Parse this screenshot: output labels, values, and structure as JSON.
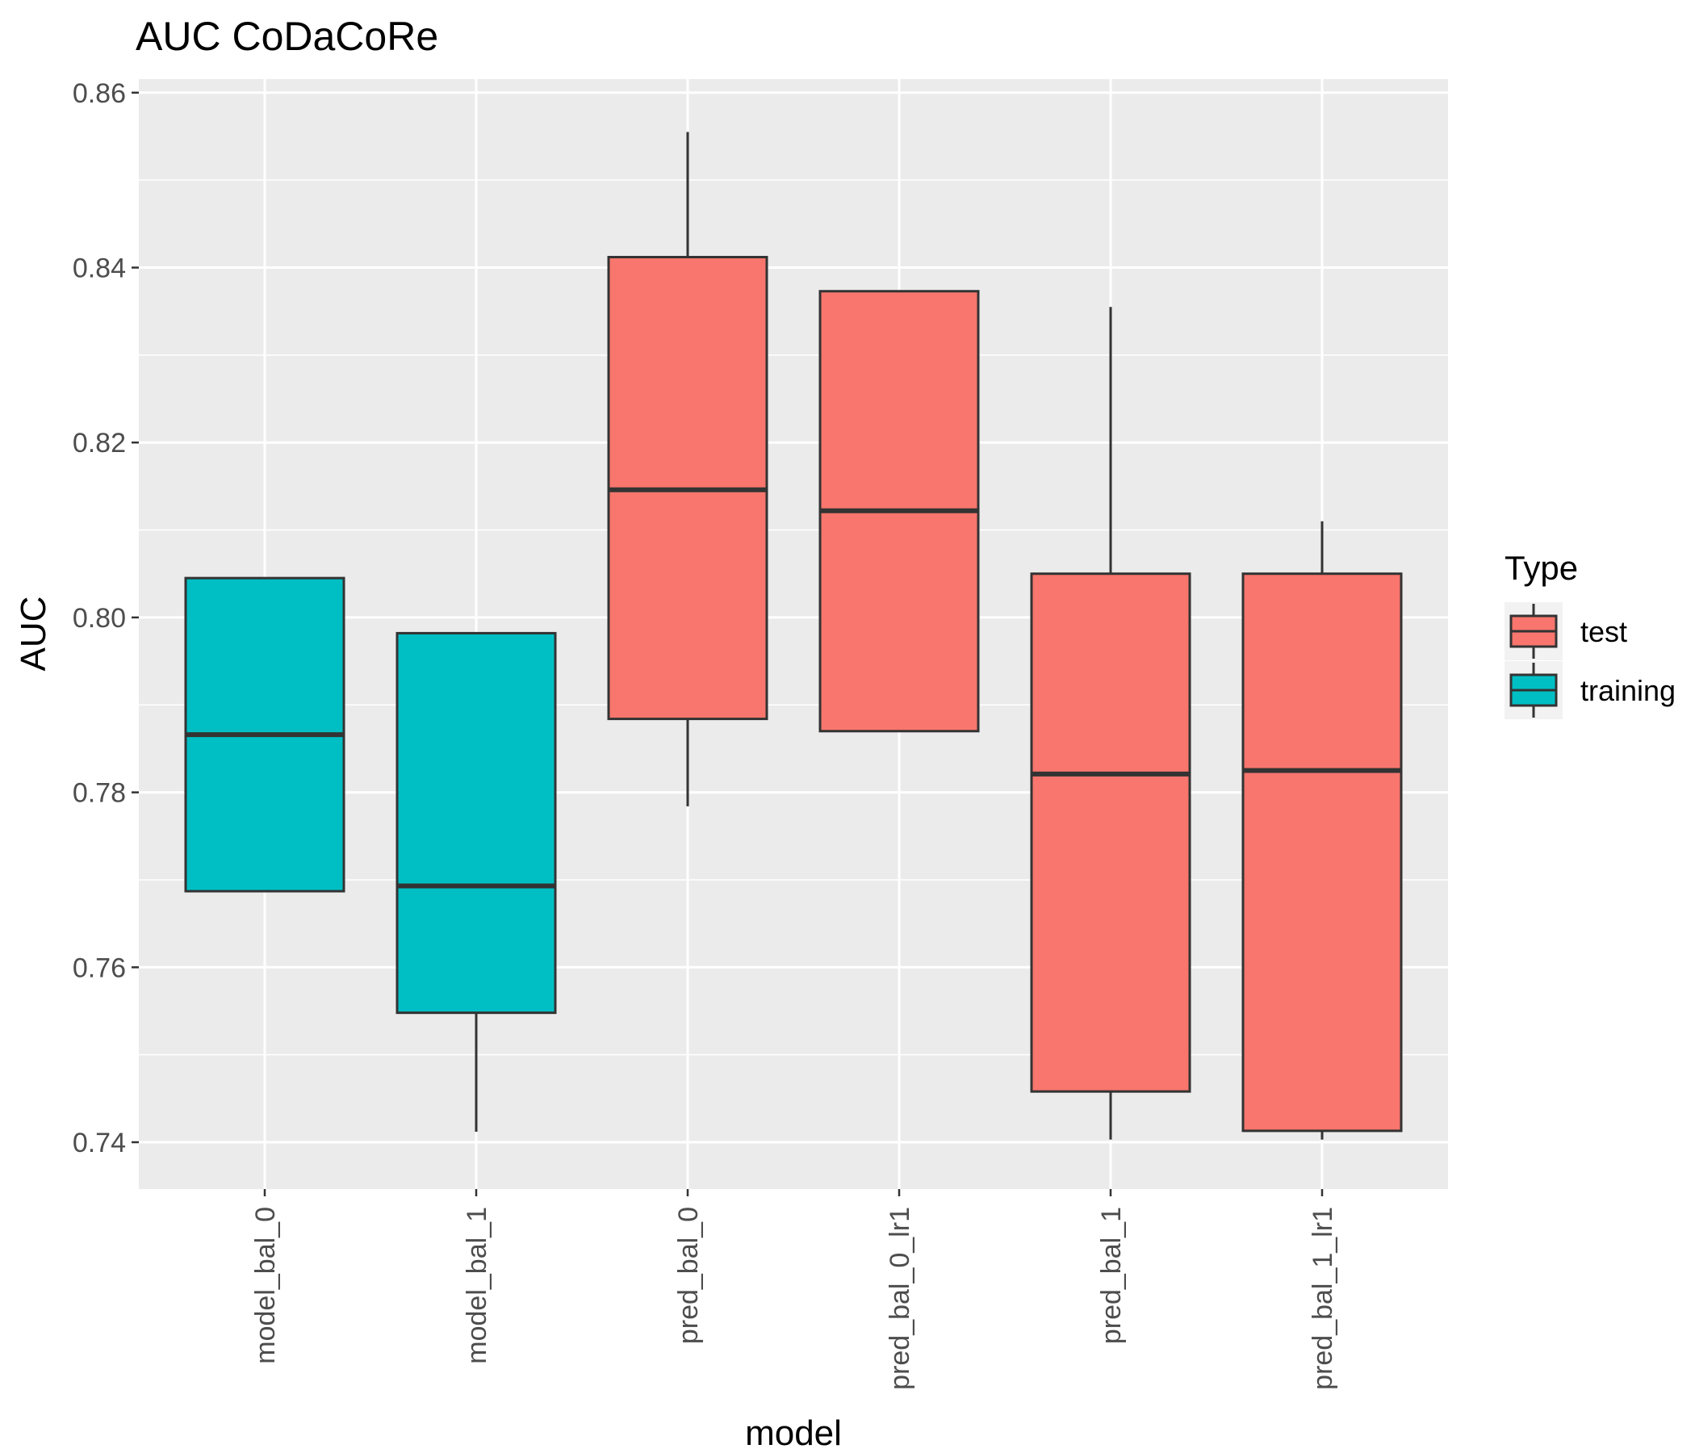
{
  "chart_data": {
    "type": "boxplot",
    "title": "AUC CoDaCoRe",
    "xlabel": "model",
    "ylabel": "AUC",
    "ylim": [
      0.73,
      0.86
    ],
    "yticks": [
      0.74,
      0.76,
      0.78,
      0.8,
      0.82,
      0.84,
      0.86
    ],
    "ytick_labels": [
      "0.74",
      "0.76",
      "0.78",
      "0.80",
      "0.82",
      "0.84",
      "0.86"
    ],
    "categories": [
      "model_bal_0",
      "model_bal_1",
      "pred_bal_0",
      "pred_bal_0_lr1",
      "pred_bal_1",
      "pred_bal_1_lr1"
    ],
    "boxes": [
      {
        "category": "model_bal_0",
        "type": "training",
        "whisker_low": 0.7687,
        "q1": 0.7687,
        "median": 0.7866,
        "q3": 0.8045,
        "whisker_high": 0.8045
      },
      {
        "category": "model_bal_1",
        "type": "training",
        "whisker_low": 0.7412,
        "q1": 0.7548,
        "median": 0.7693,
        "q3": 0.7982,
        "whisker_high": 0.7982
      },
      {
        "category": "pred_bal_0",
        "type": "test",
        "whisker_low": 0.7784,
        "q1": 0.7884,
        "median": 0.8146,
        "q3": 0.8412,
        "whisker_high": 0.8555
      },
      {
        "category": "pred_bal_0_lr1",
        "type": "test",
        "whisker_low": 0.787,
        "q1": 0.787,
        "median": 0.8122,
        "q3": 0.8373,
        "whisker_high": 0.8373
      },
      {
        "category": "pred_bal_1",
        "type": "test",
        "whisker_low": 0.7403,
        "q1": 0.7458,
        "median": 0.7821,
        "q3": 0.805,
        "whisker_high": 0.8355
      },
      {
        "category": "pred_bal_1_lr1",
        "type": "test",
        "whisker_low": 0.7403,
        "q1": 0.7413,
        "median": 0.7825,
        "q3": 0.805,
        "whisker_high": 0.811
      }
    ],
    "legend": {
      "title": "Type",
      "position": "right",
      "entries": [
        {
          "label": "test",
          "color": "#F8766D"
        },
        {
          "label": "training",
          "color": "#00BFC4"
        }
      ]
    },
    "grid": true
  },
  "colors": {
    "panel_background": "#EBEBEB",
    "grid_line": "#FFFFFF",
    "test": "#F8766D",
    "training": "#00BFC4",
    "box_outline": "#333333"
  }
}
